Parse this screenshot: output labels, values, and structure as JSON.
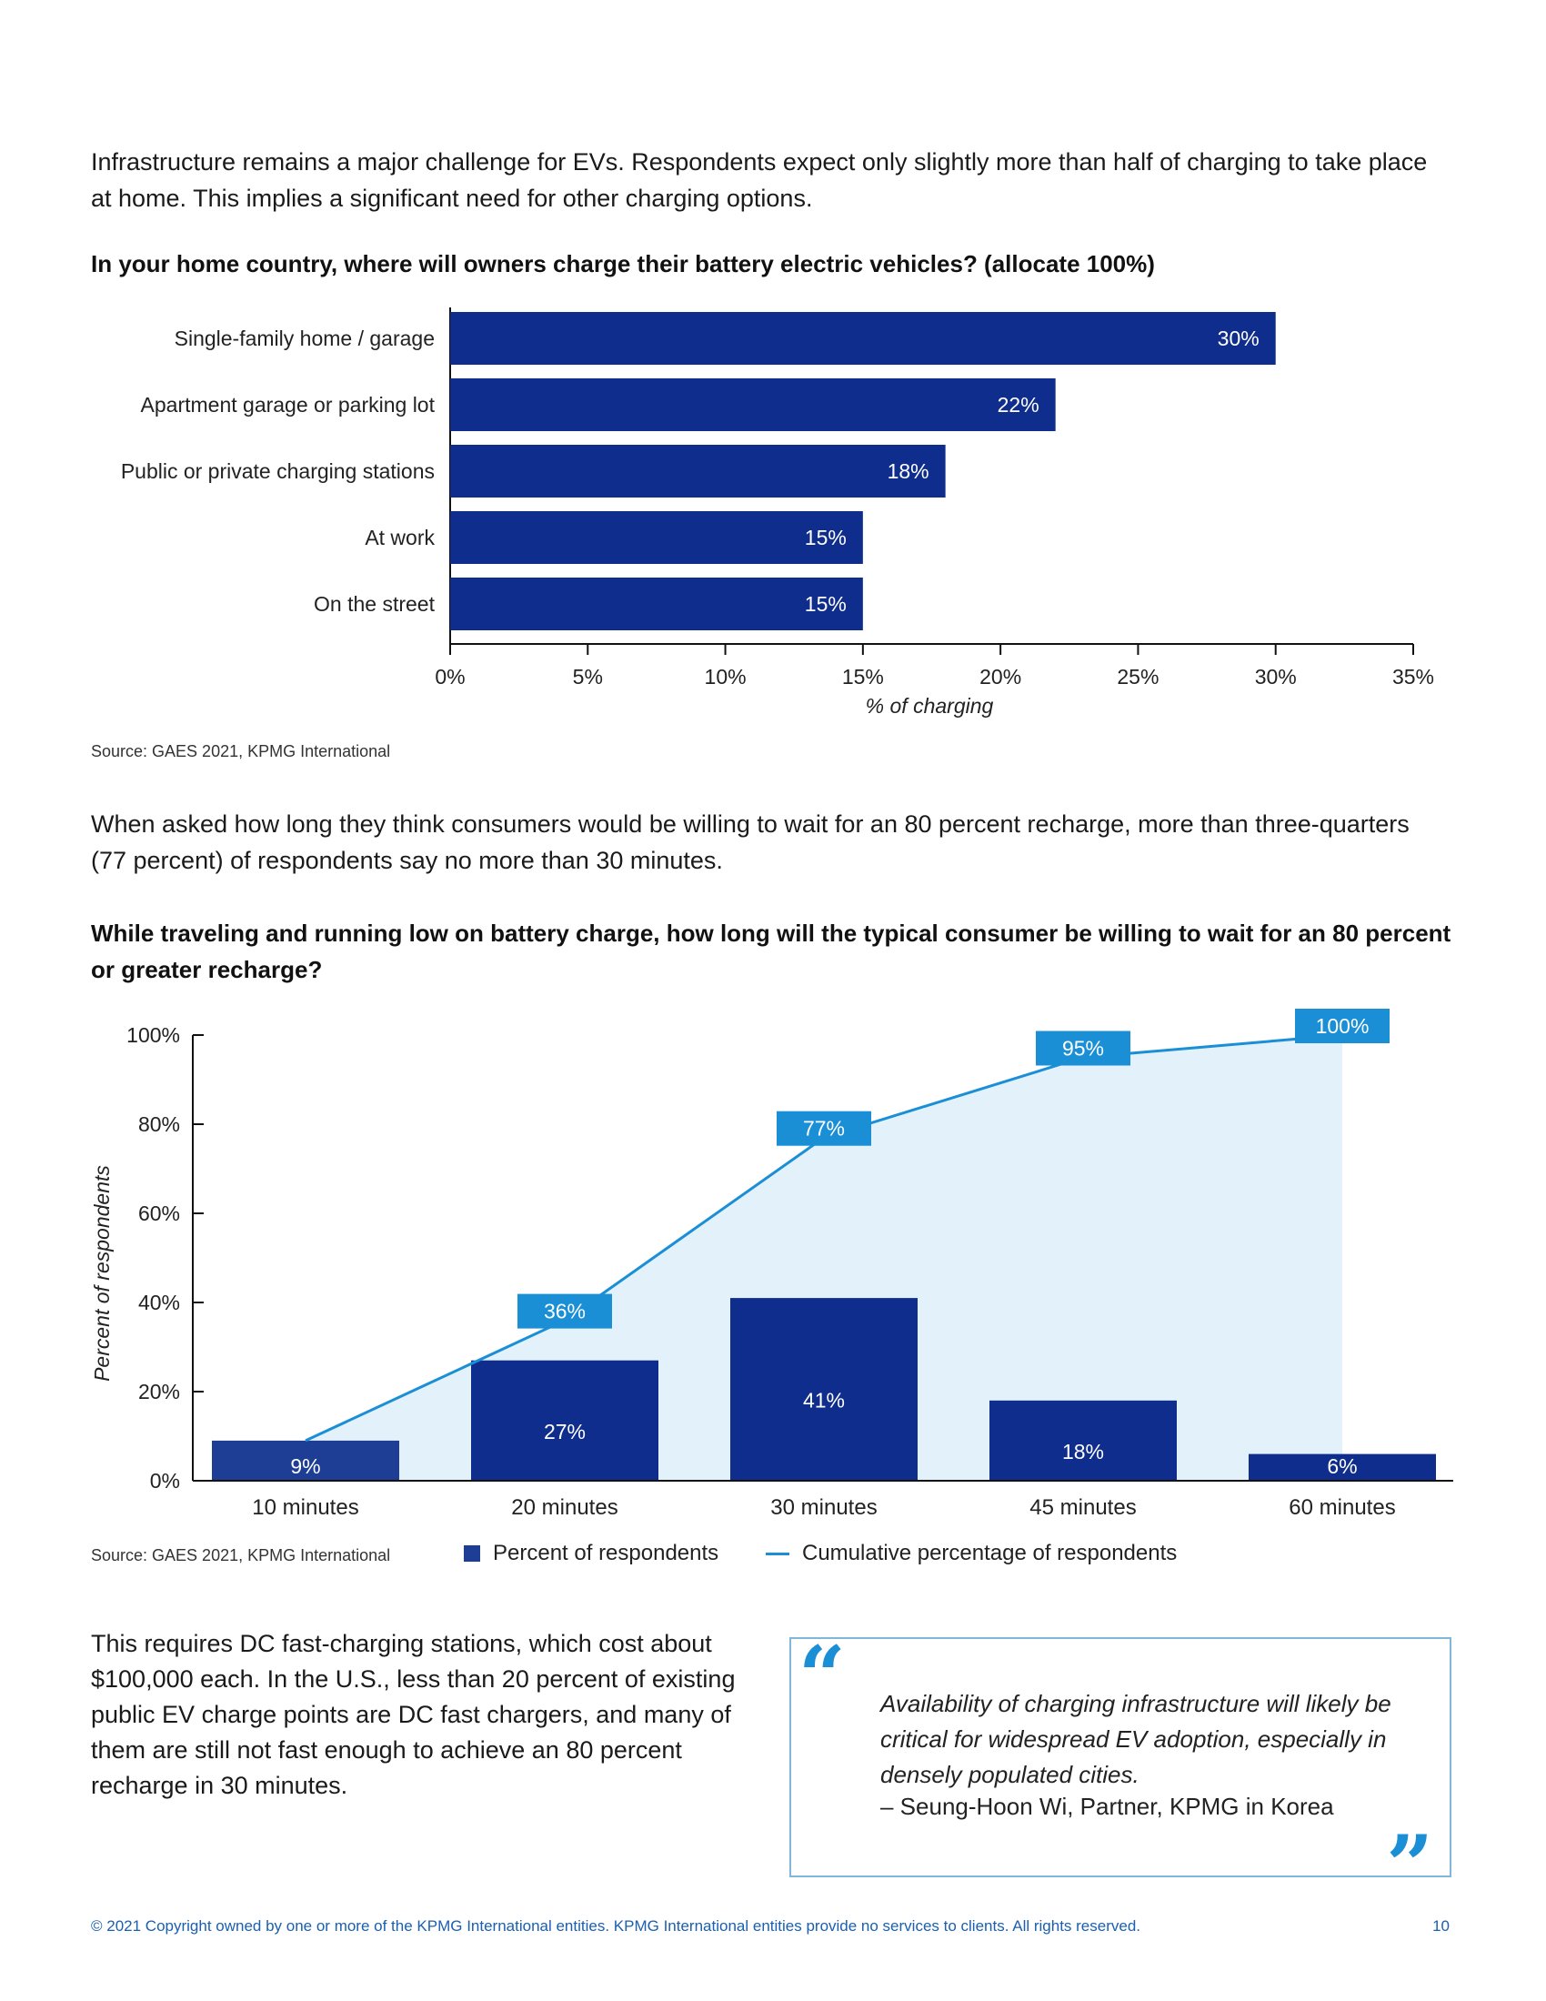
{
  "intro": "Infrastructure remains a major challenge for EVs. Respondents expect only slightly more than half of charging to take place at home. This implies a significant need for other charging options.",
  "chart1_heading": "In your home country, where will owners charge their battery electric vehicles? (allocate 100%)",
  "source1": "Source: GAES 2021, KPMG International",
  "para2": "When asked how long they think consumers would be willing to wait for an 80 percent recharge, more than three-quarters (77 percent) of respondents say no more than 30 minutes.",
  "chart2_heading": "While traveling and running low on battery charge, how long will the typical consumer be willing to wait for an 80 percent or greater recharge?",
  "source2": "Source: GAES 2021, KPMG International",
  "legend": {
    "bars": "Percent of respondents",
    "line": "Cumulative percentage of respondents"
  },
  "body3": "This requires DC fast-charging stations, which cost about $100,000 each. In the U.S., less than 20 percent of existing public EV charge points are DC fast chargers, and many of them are still not fast enough to achieve an 80 percent recharge in 30 minutes.",
  "quote": {
    "text": "Availability of charging infrastructure will likely be critical for widespread EV adoption, especially in densely populated cities.",
    "attribution": "– Seung-Hoon Wi, Partner, KPMG in Korea"
  },
  "footer": "© 2021 Copyright owned by one or more of the KPMG International entities. KPMG International entities provide no services to clients. All rights reserved.",
  "page_number": "10",
  "colors": {
    "bar_dark": "#0f2d8c",
    "bar_first": "#1e3e96",
    "line": "#1b8fd6",
    "area": "#e3f1fb",
    "label_box": "#1b8fd6"
  },
  "chart_data": [
    {
      "type": "bar",
      "orientation": "horizontal",
      "title": "In your home country, where will owners charge their battery electric vehicles? (allocate 100%)",
      "categories": [
        "Single-family home / garage",
        "Apartment garage or parking lot",
        "Public or private charging stations",
        "At work",
        "On the street"
      ],
      "values": [
        30,
        22,
        18,
        15,
        15
      ],
      "value_labels": [
        "30%",
        "22%",
        "18%",
        "15%",
        "15%"
      ],
      "xlabel": "% of charging",
      "xlim": [
        0,
        35
      ],
      "xticks": [
        "0%",
        "5%",
        "10%",
        "15%",
        "20%",
        "25%",
        "30%",
        "35%"
      ]
    },
    {
      "type": "bar",
      "title": "While traveling and running low on battery charge, how long will the typical consumer be willing to wait for an 80 percent or greater recharge?",
      "categories": [
        "10 minutes",
        "20 minutes",
        "30 minutes",
        "45 minutes",
        "60 minutes"
      ],
      "series": [
        {
          "name": "Percent of respondents",
          "type": "bar",
          "values": [
            9,
            27,
            41,
            18,
            6
          ],
          "labels": [
            "9%",
            "27%",
            "41%",
            "18%",
            "6%"
          ]
        },
        {
          "name": "Cumulative percentage of respondents",
          "type": "line",
          "values": [
            9,
            36,
            77,
            95,
            100
          ],
          "labels": [
            "",
            "36%",
            "77%",
            "95%",
            "100%"
          ]
        }
      ],
      "ylabel": "Percent of respondents",
      "ylim": [
        0,
        100
      ],
      "yticks": [
        "0%",
        "20%",
        "40%",
        "60%",
        "80%",
        "100%"
      ]
    }
  ]
}
